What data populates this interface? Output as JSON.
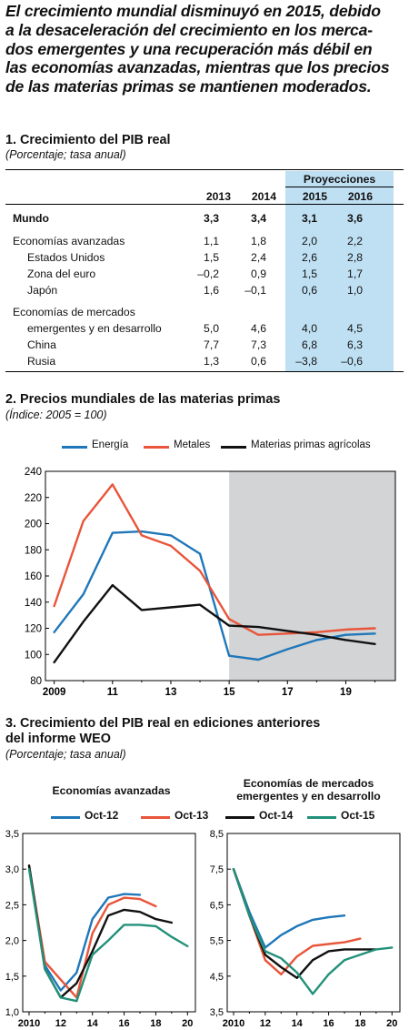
{
  "headline": "El crecimiento mundial disminuyó en 2015, debido a la desaceleración del crecimiento en los merca-dos emergentes y una recuperación más débil en las economías avanzadas, mientras que los precios de las materias primas se mantienen moderados.",
  "headline_lines": [
    "El crecimiento mundial disminuyó en 2015, debido",
    "a la desaceleración del crecimiento en los merca-",
    "dos emergentes y una recuperación más débil en",
    "las economías avanzadas, mientras que los precios",
    "de las materias primas se mantienen moderados."
  ],
  "section1": {
    "title": "1. Crecimiento del PIB real",
    "subtitle": "(Porcentaje; tasa anual)",
    "projections_label": "Proyecciones",
    "years": [
      "2013",
      "2014",
      "2015",
      "2016"
    ],
    "rows": [
      {
        "label": "Mundo",
        "values": [
          "3,3",
          "3,4",
          "3,1",
          "3,6"
        ]
      },
      {
        "label": "Economías avanzadas",
        "values": [
          "1,1",
          "1,8",
          "2,0",
          "2,2"
        ]
      },
      {
        "label": "Estados Unidos",
        "values": [
          "1,5",
          "2,4",
          "2,6",
          "2,8"
        ]
      },
      {
        "label": "Zona del euro",
        "values": [
          "–0,2",
          "0,9",
          "1,5",
          "1,7"
        ]
      },
      {
        "label": "Japón",
        "values": [
          "1,6",
          "–0,1",
          "0,6",
          "1,0"
        ]
      },
      {
        "label": "Economías de mercados",
        "values": [
          "",
          "",
          "",
          ""
        ]
      },
      {
        "label": "emergentes y en desarrollo",
        "values": [
          "5,0",
          "4,6",
          "4,0",
          "4,5"
        ]
      },
      {
        "label": "China",
        "values": [
          "7,7",
          "7,3",
          "6,8",
          "6,3"
        ]
      },
      {
        "label": "Rusia",
        "values": [
          "1,3",
          "0,6",
          "–3,8",
          "–0,6"
        ]
      }
    ]
  },
  "section2": {
    "title": "2. Precios mundiales de las materias primas",
    "subtitle": "(Índice: 2005 = 100)"
  },
  "section3": {
    "title_line1": "3. Crecimiento del PIB real en ediciones anteriores",
    "title_line2": "del informe WEO",
    "subtitle": "(Porcentaje; tasa anual)"
  },
  "colors": {
    "blue": "#1f77b9",
    "orange": "#e8553a",
    "black": "#111111",
    "green": "#23917a",
    "projection_fill": "#bfe0f3",
    "forecast_shade": "#d3d4d6"
  },
  "chart_data": [
    {
      "type": "table",
      "title": "1. Crecimiento del PIB real",
      "columns": [
        "2013",
        "2014",
        "2015",
        "2016"
      ],
      "rows": [
        [
          "Mundo",
          3.3,
          3.4,
          3.1,
          3.6
        ],
        [
          "Economías avanzadas",
          1.1,
          1.8,
          2.0,
          2.2
        ],
        [
          "Estados Unidos",
          1.5,
          2.4,
          2.6,
          2.8
        ],
        [
          "Zona del euro",
          -0.2,
          0.9,
          1.5,
          1.7
        ],
        [
          "Japón",
          1.6,
          -0.1,
          0.6,
          1.0
        ],
        [
          "Economías de mercados emergentes y en desarrollo",
          5.0,
          4.6,
          4.0,
          4.5
        ],
        [
          "China",
          7.7,
          7.3,
          6.8,
          6.3
        ],
        [
          "Rusia",
          1.3,
          0.6,
          -3.8,
          -0.6
        ]
      ]
    },
    {
      "type": "line",
      "title": "2. Precios mundiales de las materias primas",
      "x": [
        2009,
        2010,
        2011,
        2012,
        2013,
        2014,
        2015,
        2016,
        2017,
        2018,
        2019,
        2020
      ],
      "xticks": [
        2009,
        2011,
        2013,
        2015,
        2017,
        2019
      ],
      "xticklabels": [
        "2009",
        "11",
        "13",
        "15",
        "17",
        "19"
      ],
      "xlim": [
        2008.7,
        2020.7
      ],
      "ylim": [
        80,
        240
      ],
      "yticks": [
        80,
        100,
        120,
        140,
        160,
        180,
        200,
        220,
        240
      ],
      "shaded_from": 2015,
      "legend": "top",
      "series": [
        {
          "name": "Energía",
          "color": "#1f77b9",
          "values": [
            117,
            146,
            193,
            194,
            191,
            177,
            99,
            96,
            104,
            111,
            115,
            116
          ]
        },
        {
          "name": "Metales",
          "color": "#e8553a",
          "values": [
            137,
            202,
            230,
            191,
            183,
            164,
            127,
            115,
            116,
            117,
            119,
            120
          ]
        },
        {
          "name": "Materias primas agrícolas",
          "color": "#111111",
          "values": [
            94,
            125,
            153,
            134,
            136,
            138,
            122,
            121,
            118,
            115,
            111,
            108
          ]
        }
      ]
    },
    {
      "type": "line",
      "title": "Economías avanzadas",
      "xlim": [
        2009.6,
        2020.5
      ],
      "ylim": [
        1.0,
        3.5
      ],
      "yticks": [
        1.0,
        1.5,
        2.0,
        2.5,
        3.0,
        3.5
      ],
      "yticklabels": [
        "1,0",
        "1,5",
        "2,0",
        "2,5",
        "3,0",
        "3,5"
      ],
      "xticks": [
        2010,
        2012,
        2014,
        2016,
        2018,
        2020
      ],
      "xticklabels": [
        "2010",
        "12",
        "14",
        "16",
        "18",
        "20"
      ],
      "series": [
        {
          "name": "Oct-12",
          "color": "#1f77b9",
          "x": [
            2010,
            2011,
            2012,
            2013,
            2014,
            2015,
            2016,
            2017
          ],
          "values": [
            3.05,
            1.65,
            1.3,
            1.55,
            2.3,
            2.6,
            2.65,
            2.64
          ]
        },
        {
          "name": "Oct-13",
          "color": "#e8553a",
          "x": [
            2010,
            2011,
            2012,
            2013,
            2014,
            2015,
            2016,
            2017,
            2018
          ],
          "values": [
            3.05,
            1.7,
            1.45,
            1.2,
            2.1,
            2.5,
            2.6,
            2.58,
            2.48
          ]
        },
        {
          "name": "Oct-14",
          "color": "#111111",
          "x": [
            2010,
            2011,
            2012,
            2013,
            2014,
            2015,
            2016,
            2017,
            2018,
            2019
          ],
          "values": [
            3.05,
            1.6,
            1.2,
            1.4,
            1.85,
            2.35,
            2.43,
            2.4,
            2.3,
            2.25
          ]
        },
        {
          "name": "Oct-15",
          "color": "#23917a",
          "x": [
            2010,
            2011,
            2012,
            2013,
            2014,
            2015,
            2016,
            2017,
            2018,
            2019,
            2020
          ],
          "values": [
            3.0,
            1.6,
            1.2,
            1.15,
            1.8,
            2.0,
            2.22,
            2.22,
            2.2,
            2.05,
            1.92
          ]
        }
      ]
    },
    {
      "type": "line",
      "title": "Economías de mercados emergentes y en desarrollo",
      "xlim": [
        2009.6,
        2020.5
      ],
      "ylim": [
        3.5,
        8.5
      ],
      "yticks": [
        3.5,
        4.5,
        5.5,
        6.5,
        7.5,
        8.5
      ],
      "yticklabels": [
        "3,5",
        "4,5",
        "5,5",
        "6,5",
        "7,5",
        "8,5"
      ],
      "xticks": [
        2010,
        2012,
        2014,
        2016,
        2018,
        2020
      ],
      "xticklabels": [
        "2010",
        "12",
        "14",
        "16",
        "18",
        "20"
      ],
      "series": [
        {
          "name": "Oct-12",
          "color": "#1f77b9",
          "x": [
            2010,
            2011,
            2012,
            2013,
            2014,
            2015,
            2016,
            2017
          ],
          "values": [
            7.5,
            6.3,
            5.3,
            5.65,
            5.9,
            6.08,
            6.15,
            6.2
          ]
        },
        {
          "name": "Oct-13",
          "color": "#e8553a",
          "x": [
            2010,
            2011,
            2012,
            2013,
            2014,
            2015,
            2016,
            2017,
            2018
          ],
          "values": [
            7.5,
            6.2,
            4.95,
            4.55,
            5.05,
            5.35,
            5.4,
            5.45,
            5.55
          ]
        },
        {
          "name": "Oct-14",
          "color": "#111111",
          "x": [
            2010,
            2011,
            2012,
            2013,
            2014,
            2015,
            2016,
            2017,
            2018,
            2019
          ],
          "values": [
            7.5,
            6.2,
            5.1,
            4.75,
            4.45,
            4.95,
            5.2,
            5.25,
            5.25,
            5.25
          ]
        },
        {
          "name": "Oct-15",
          "color": "#23917a",
          "x": [
            2010,
            2011,
            2012,
            2013,
            2014,
            2015,
            2016,
            2017,
            2018,
            2019,
            2020
          ],
          "values": [
            7.5,
            6.2,
            5.2,
            5.0,
            4.6,
            4.0,
            4.55,
            4.95,
            5.1,
            5.25,
            5.3
          ]
        }
      ]
    }
  ]
}
